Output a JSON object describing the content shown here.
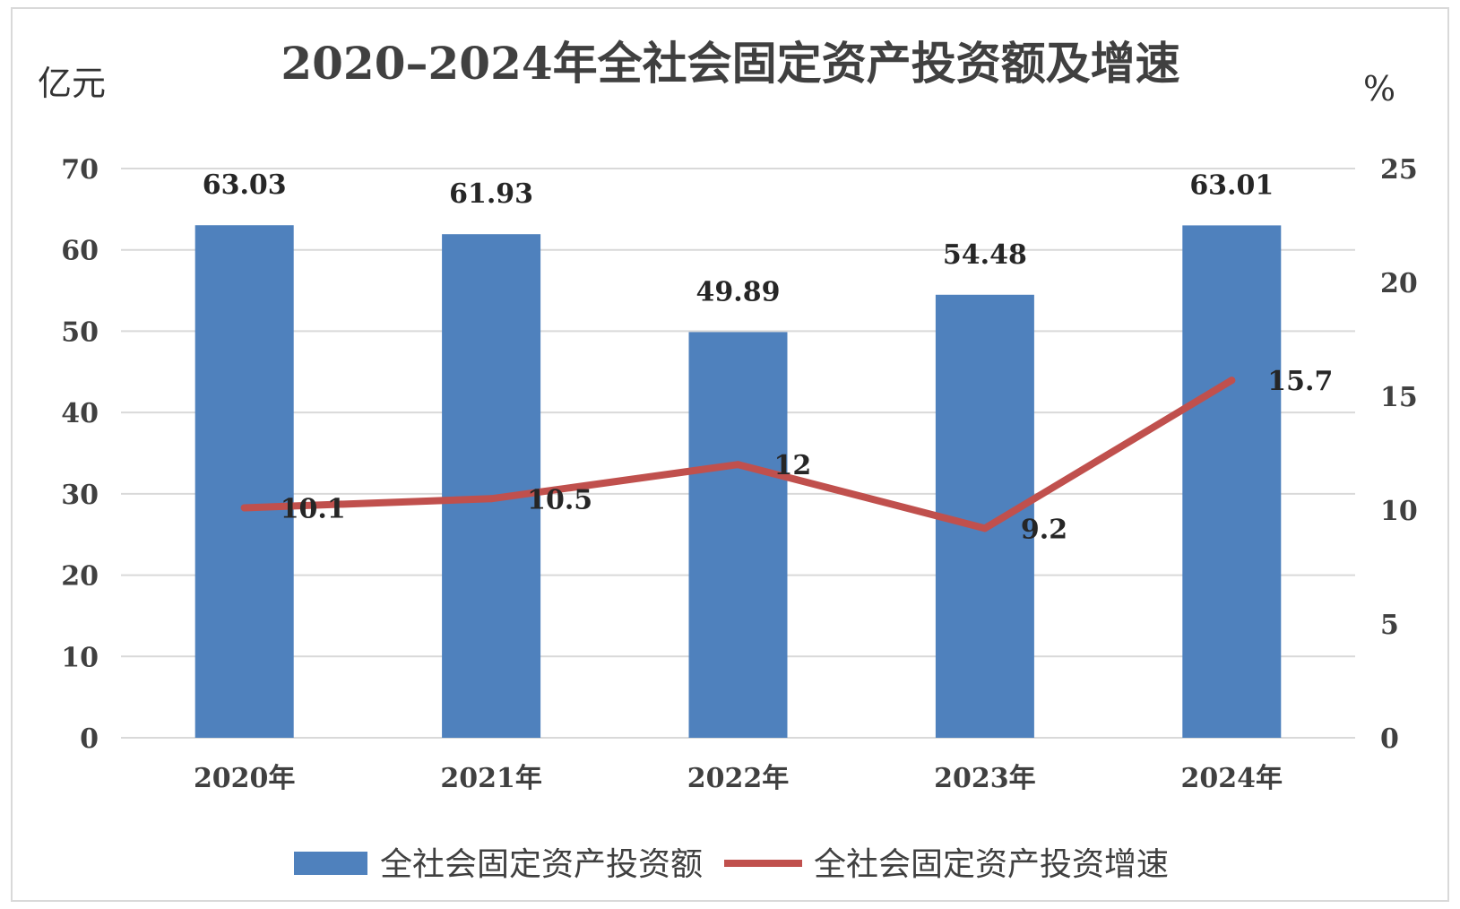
{
  "chart_data": {
    "type": "bar",
    "title": "2020–2024年全社会固定资产投资额及增速",
    "left_unit": "亿元",
    "right_unit": "%",
    "categories": [
      "2020年",
      "2021年",
      "2022年",
      "2023年",
      "2024年"
    ],
    "series": [
      {
        "name": "全社会固定资产投资额",
        "type": "bar",
        "axis": "left",
        "color": "#4f81bd",
        "values": [
          63.03,
          61.93,
          49.89,
          54.48,
          63.01
        ],
        "labels": [
          "63.03",
          "61.93",
          "49.89",
          "54.48",
          "63.01"
        ]
      },
      {
        "name": "全社会固定资产投资增速",
        "type": "line",
        "axis": "right",
        "color": "#c0504d",
        "values": [
          10.1,
          10.5,
          12,
          9.2,
          15.7
        ],
        "labels": [
          "10.1",
          "10.5",
          "12",
          "9.2",
          "15.7"
        ]
      }
    ],
    "y_left": {
      "min": 0,
      "max": 70,
      "ticks": [
        0,
        10,
        20,
        30,
        40,
        50,
        60,
        70
      ]
    },
    "y_right": {
      "min": 0,
      "max": 25,
      "ticks": [
        0,
        5,
        10,
        15,
        20,
        25
      ]
    },
    "grid": true,
    "legend_position": "bottom"
  }
}
